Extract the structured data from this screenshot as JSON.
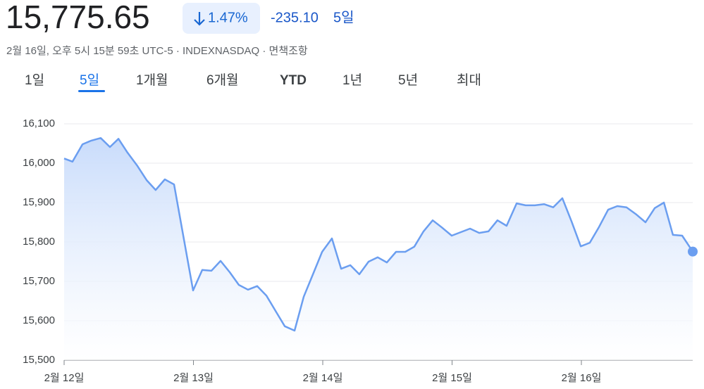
{
  "header": {
    "price": "15,775.65",
    "change_percent": "1.47%",
    "change": "-235.10",
    "period": "5일",
    "subtitle": "2월 16일, 오후 5시 15분 59초 UTC-5 · INDEXNASDAQ · 면책조항"
  },
  "tabs": [
    "1일",
    "5일",
    "1개월",
    "6개월",
    "YTD",
    "1년",
    "5년",
    "최대"
  ],
  "selected_tab": 1,
  "chart_data": {
    "type": "area",
    "x": [
      0,
      0.065,
      0.142,
      0.207,
      0.283,
      0.354,
      0.42,
      0.49,
      0.567,
      0.638,
      0.708,
      0.779,
      0.85,
      0.997,
      1.068,
      1.139,
      1.21,
      1.281,
      1.351,
      1.422,
      1.493,
      1.564,
      1.635,
      1.706,
      1.782,
      1.853,
      1.924,
      1.995,
      2.071,
      2.142,
      2.213,
      2.283,
      2.354,
      2.425,
      2.496,
      2.567,
      2.638,
      2.708,
      2.779,
      2.85,
      2.921,
      2.997,
      3.068,
      3.139,
      3.21,
      3.281,
      3.351,
      3.422,
      3.499,
      3.569,
      3.64,
      3.711,
      3.782,
      3.853,
      3.924,
      3.995,
      4.065,
      4.136,
      4.207,
      4.278,
      4.349,
      4.42,
      4.496,
      4.567,
      4.638,
      4.708,
      4.779,
      4.861
    ],
    "values": [
      16012,
      16004,
      16048,
      16057,
      16064,
      16041,
      16062,
      16027,
      15993,
      15957,
      15932,
      15959,
      15946,
      15677,
      15729,
      15727,
      15752,
      15723,
      15691,
      15679,
      15688,
      15664,
      15625,
      15586,
      15575,
      15661,
      15718,
      15775,
      15809,
      15732,
      15741,
      15718,
      15750,
      15761,
      15748,
      15775,
      15775,
      15788,
      15827,
      15855,
      15837,
      15816,
      15825,
      15834,
      15823,
      15827,
      15855,
      15841,
      15898,
      15893,
      15893,
      15896,
      15888,
      15911,
      15852,
      15789,
      15798,
      15838,
      15882,
      15891,
      15888,
      15871,
      15850,
      15886,
      15900,
      15818,
      15816,
      15775.65
    ],
    "color": "#6b9ef0",
    "xlim": [
      0,
      4.861
    ],
    "xticks": [
      {
        "value": 0,
        "label": "2월 12일"
      },
      {
        "value": 1,
        "label": "2월 13일"
      },
      {
        "value": 2,
        "label": "2월 14일"
      },
      {
        "value": 3,
        "label": "2월 15일"
      },
      {
        "value": 4,
        "label": "2월 16일"
      }
    ],
    "ylim": [
      15500,
      16100
    ],
    "yticks": [
      {
        "value": 15500,
        "label": "15,500"
      },
      {
        "value": 15600,
        "label": "15,600"
      },
      {
        "value": 15700,
        "label": "15,700"
      },
      {
        "value": 15800,
        "label": "15,800"
      },
      {
        "value": 15900,
        "label": "15,900"
      },
      {
        "value": 16000,
        "label": "16,000"
      },
      {
        "value": 16100,
        "label": "16,100"
      }
    ],
    "grid": true
  }
}
